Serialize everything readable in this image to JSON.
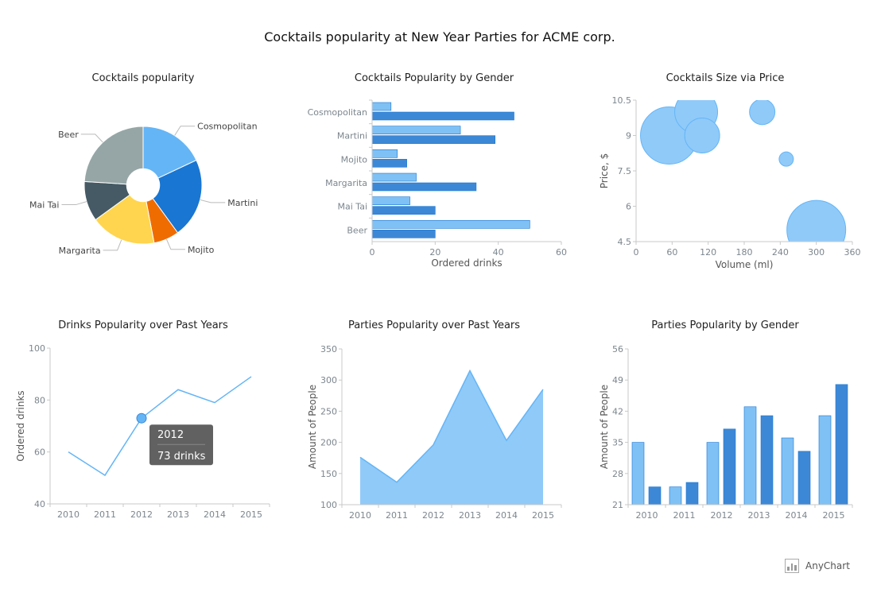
{
  "title": "Cocktails popularity at New Year Parties for ACME corp.",
  "credits": {
    "label": "AnyChart"
  },
  "colors": {
    "blue": "#64b5f6",
    "dark_blue": "#1976d2",
    "bar_light": "#80c1f5",
    "bar_dark": "#3d88d6",
    "bubble": "#90caf9",
    "slate": "#455a64",
    "grey": "#96a6a6",
    "yellow": "#ffd54f",
    "orange": "#ef6c00",
    "axis": "#c9c9c9",
    "tick_text": "#7c868e",
    "tooltip_bg": "#616161"
  },
  "chart_data": [
    {
      "id": "pie",
      "type": "pie",
      "title": "Cocktails popularity",
      "slices": [
        {
          "label": "Cosmopolitan",
          "value": 18,
          "color": "#64b5f6"
        },
        {
          "label": "Martini",
          "value": 22,
          "color": "#1976d2"
        },
        {
          "label": "Mojito",
          "value": 7,
          "color": "#ef6c00"
        },
        {
          "label": "Margarita",
          "value": 18,
          "color": "#ffd54f"
        },
        {
          "label": "Mai Tai",
          "value": 11,
          "color": "#455a64"
        },
        {
          "label": "Beer",
          "value": 24,
          "color": "#96a6a6"
        }
      ],
      "inner_radius_ratio": 0.28
    },
    {
      "id": "gender-bar",
      "type": "bar",
      "orientation": "horizontal",
      "title": "Cocktails Popularity by Gender",
      "xlabel": "Ordered drinks",
      "categories": [
        "Cosmopolitan",
        "Martini",
        "Mojito",
        "Margarita",
        "Mai Tai",
        "Beer"
      ],
      "series": [
        {
          "values": [
            6,
            28,
            8,
            14,
            12,
            50
          ],
          "color": "#80c1f5"
        },
        {
          "values": [
            45,
            39,
            11,
            33,
            20,
            20
          ],
          "color": "#3d88d6"
        }
      ],
      "xlim": [
        0,
        60
      ],
      "ticks": [
        "0",
        "20",
        "40",
        "60"
      ]
    },
    {
      "id": "bubble",
      "type": "scatter",
      "title": "Cocktails Size via Price",
      "xlabel": "Volume (ml)",
      "ylabel": "Price, $",
      "points": [
        {
          "x": 55,
          "y": 9,
          "size": 36
        },
        {
          "x": 100,
          "y": 10,
          "size": 27
        },
        {
          "x": 110,
          "y": 9,
          "size": 22
        },
        {
          "x": 210,
          "y": 10,
          "size": 16
        },
        {
          "x": 250,
          "y": 8,
          "size": 9
        },
        {
          "x": 300,
          "y": 5,
          "size": 37
        }
      ],
      "xlim": [
        0,
        360
      ],
      "ylim": [
        4.5,
        10.5
      ],
      "xticks": [
        "0",
        "60",
        "120",
        "180",
        "240",
        "300",
        "360"
      ],
      "yticks": [
        "4.5",
        "6",
        "7.5",
        "9",
        "10.5"
      ]
    },
    {
      "id": "line",
      "type": "line",
      "title": "Drinks Popularity over Past Years",
      "ylabel": "Ordered drinks",
      "categories": [
        "2010",
        "2011",
        "2012",
        "2013",
        "2014",
        "2015"
      ],
      "values": [
        60,
        51,
        73,
        84,
        79,
        89
      ],
      "ylim": [
        40,
        100
      ],
      "yticks": [
        "40",
        "60",
        "80",
        "100"
      ],
      "tooltip": {
        "title": "2012",
        "value": "73 drinks",
        "index": 2
      }
    },
    {
      "id": "area",
      "type": "area",
      "title": "Parties Popularity over Past Years",
      "ylabel": "Amount of People",
      "categories": [
        "2010",
        "2011",
        "2012",
        "2013",
        "2014",
        "2015"
      ],
      "values": [
        176,
        136,
        196,
        315,
        203,
        285
      ],
      "ylim": [
        100,
        350
      ],
      "yticks": [
        "100",
        "150",
        "200",
        "250",
        "300",
        "350"
      ]
    },
    {
      "id": "column",
      "type": "bar",
      "orientation": "vertical",
      "title": "Parties Popularity by Gender",
      "ylabel": "Amount of People",
      "categories": [
        "2010",
        "2011",
        "2012",
        "2013",
        "2014",
        "2015"
      ],
      "series": [
        {
          "values": [
            35,
            25,
            35,
            43,
            36,
            41
          ],
          "color": "#80c1f5"
        },
        {
          "values": [
            25,
            26,
            38,
            41,
            33,
            48
          ],
          "color": "#3d88d6"
        }
      ],
      "ylim": [
        21,
        56
      ],
      "yticks": [
        "21",
        "28",
        "35",
        "42",
        "49",
        "56"
      ]
    }
  ]
}
